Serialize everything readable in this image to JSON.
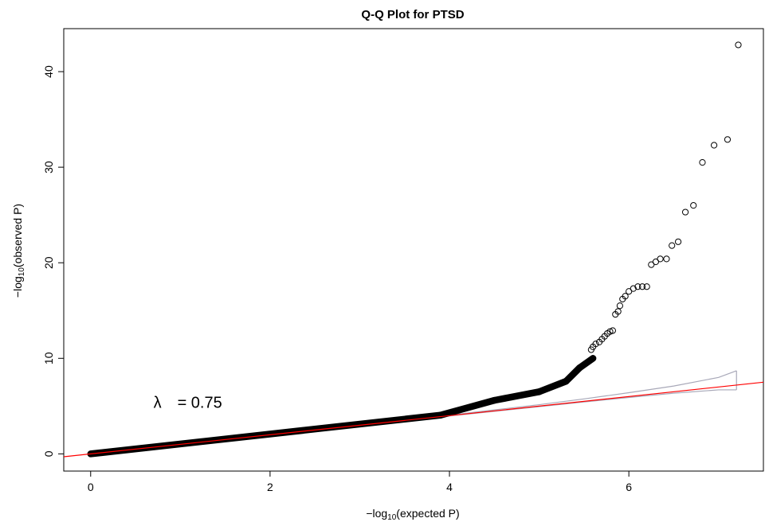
{
  "chart_data": {
    "type": "scatter",
    "title": "Q-Q Plot for PTSD",
    "xlabel": {
      "prefix": "−log",
      "sub": "10",
      "suffix": "(expected P)"
    },
    "ylabel": {
      "prefix": "−log",
      "sub": "10",
      "suffix": "(observed P)"
    },
    "xlim": [
      -0.3,
      7.5
    ],
    "ylim": [
      -1.8,
      44.5
    ],
    "x_ticks": [
      0,
      2,
      4,
      6
    ],
    "y_ticks": [
      0,
      10,
      20,
      30,
      40
    ],
    "grid": false,
    "annotation": {
      "symbol": "λ",
      "text": "= 0.75",
      "value": 0.75,
      "x": 0.7,
      "y": 4.8
    },
    "reference_line": {
      "color": "#ff0000",
      "intercept": 0,
      "slope": 1,
      "x": [
        -0.3,
        7.5
      ]
    },
    "confidence_band": {
      "color": "#a8a8b8",
      "x": [
        3.0,
        3.5,
        4.0,
        4.5,
        5.0,
        5.5,
        6.0,
        6.5,
        7.0,
        7.2
      ],
      "upper": [
        3.05,
        3.55,
        4.05,
        4.6,
        5.15,
        5.75,
        6.4,
        7.1,
        8.0,
        8.7
      ],
      "lower": [
        2.97,
        3.47,
        3.96,
        4.45,
        4.94,
        5.43,
        5.9,
        6.35,
        6.7,
        6.7
      ]
    },
    "dense_segments": [
      {
        "x_start": 0.0,
        "y_start": 0.0,
        "x_end": 3.9,
        "y_end": 4.05
      },
      {
        "x_start": 3.9,
        "y_start": 4.05,
        "x_end": 4.5,
        "y_end": 5.6
      },
      {
        "x_start": 4.5,
        "y_start": 5.6,
        "x_end": 5.0,
        "y_end": 6.5
      },
      {
        "x_start": 5.0,
        "y_start": 6.5,
        "x_end": 5.3,
        "y_end": 7.6
      },
      {
        "x_start": 5.3,
        "y_start": 7.6,
        "x_end": 5.45,
        "y_end": 9.0
      },
      {
        "x_start": 5.45,
        "y_start": 9.0,
        "x_end": 5.6,
        "y_end": 10.0
      }
    ],
    "points": [
      [
        5.58,
        10.9
      ],
      [
        5.6,
        11.2
      ],
      [
        5.63,
        11.5
      ],
      [
        5.67,
        11.7
      ],
      [
        5.7,
        12.0
      ],
      [
        5.73,
        12.3
      ],
      [
        5.76,
        12.6
      ],
      [
        5.79,
        12.8
      ],
      [
        5.82,
        12.9
      ],
      [
        5.85,
        14.6
      ],
      [
        5.88,
        14.9
      ],
      [
        5.9,
        15.5
      ],
      [
        5.93,
        16.2
      ],
      [
        5.96,
        16.5
      ],
      [
        6.0,
        17.0
      ],
      [
        6.05,
        17.3
      ],
      [
        6.1,
        17.5
      ],
      [
        6.15,
        17.5
      ],
      [
        6.2,
        17.5
      ],
      [
        6.25,
        19.8
      ],
      [
        6.3,
        20.1
      ],
      [
        6.35,
        20.4
      ],
      [
        6.42,
        20.4
      ],
      [
        6.48,
        21.8
      ],
      [
        6.55,
        22.2
      ],
      [
        6.63,
        25.3
      ],
      [
        6.72,
        26.0
      ],
      [
        6.82,
        30.5
      ],
      [
        6.95,
        32.3
      ],
      [
        7.1,
        32.9
      ],
      [
        7.22,
        42.8
      ]
    ]
  }
}
